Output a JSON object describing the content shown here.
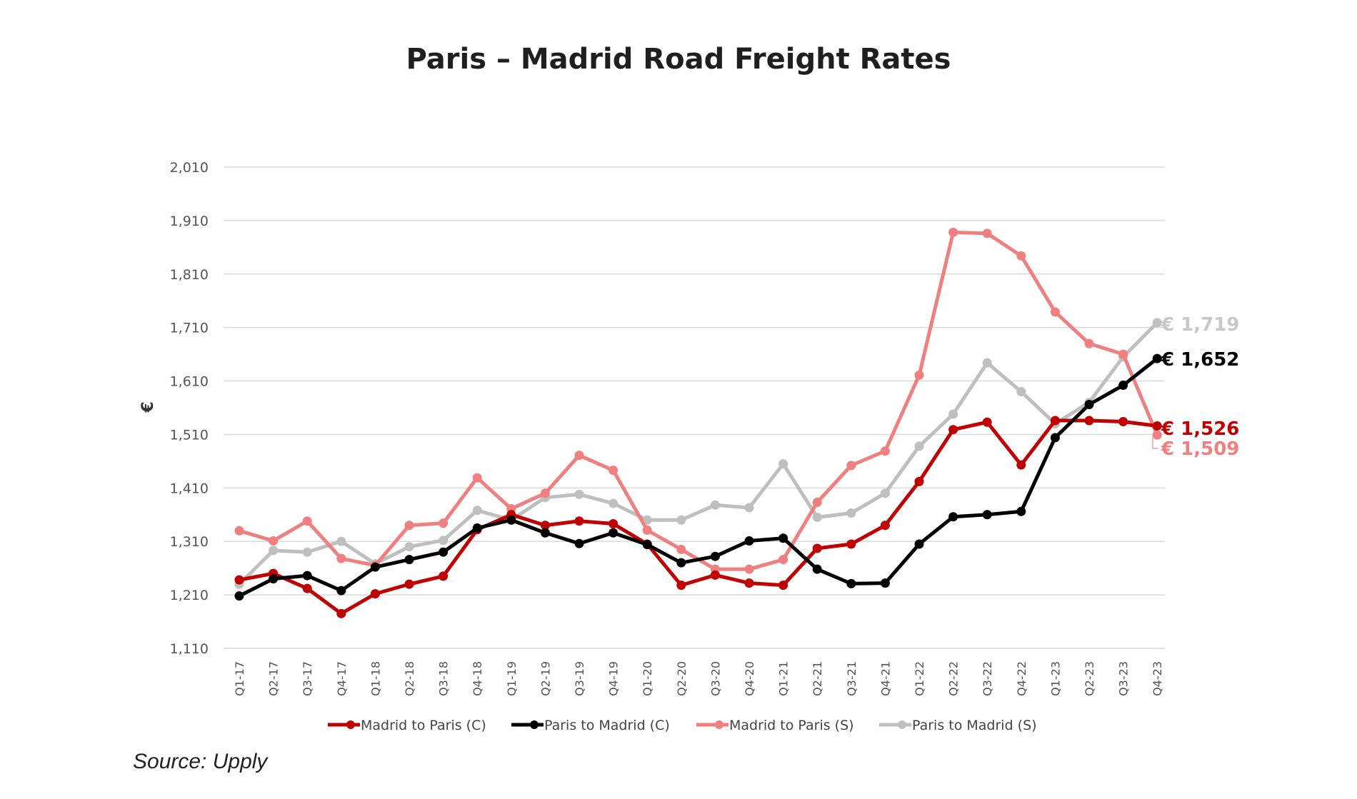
{
  "chart_data": {
    "type": "line",
    "title": "Paris – Madrid Road Freight Rates",
    "ylabel": "€",
    "xlabel": "",
    "ylim": [
      1110,
      2010
    ],
    "yticks": [
      1110,
      1210,
      1310,
      1410,
      1510,
      1610,
      1710,
      1810,
      1910,
      2010
    ],
    "ytick_labels": [
      "1,110",
      "1,210",
      "1,310",
      "1,410",
      "1,510",
      "1,610",
      "1,710",
      "1,810",
      "1,910",
      "2,010"
    ],
    "grid": true,
    "legend_position": "bottom",
    "categories": [
      "Q1-17",
      "Q2-17",
      "Q3-17",
      "Q4-17",
      "Q1-18",
      "Q2-18",
      "Q3-18",
      "Q4-18",
      "Q1-19",
      "Q2-19",
      "Q3-19",
      "Q4-19",
      "Q1-20",
      "Q2-20",
      "Q3-20",
      "Q4-20",
      "Q1-21",
      "Q2-21",
      "Q3-21",
      "Q4-21",
      "Q1-22",
      "Q2-22",
      "Q3-22",
      "Q4-22",
      "Q1-23",
      "Q2-23",
      "Q3-23",
      "Q4-23"
    ],
    "series": [
      {
        "name": "Madrid to Paris (C)",
        "color": "#c00000",
        "values": [
          1238,
          1250,
          1222,
          1175,
          1212,
          1230,
          1245,
          1332,
          1360,
          1340,
          1348,
          1343,
          1305,
          1228,
          1247,
          1232,
          1228,
          1297,
          1305,
          1340,
          1422,
          1519,
          1533,
          1453,
          1536,
          1536,
          1534,
          1526
        ],
        "end_label": "€ 1,526"
      },
      {
        "name": "Paris to Madrid (C)",
        "color": "#000000",
        "values": [
          1208,
          1240,
          1246,
          1218,
          1262,
          1276,
          1290,
          1335,
          1350,
          1326,
          1306,
          1326,
          1304,
          1270,
          1282,
          1311,
          1316,
          1258,
          1231,
          1232,
          1305,
          1356,
          1360,
          1366,
          1504,
          1566,
          1602,
          1652
        ],
        "end_label": "€ 1,652"
      },
      {
        "name": "Madrid to Paris (S)",
        "color": "#f08080",
        "values": [
          1330,
          1311,
          1348,
          1278,
          1265,
          1340,
          1344,
          1429,
          1371,
          1400,
          1471,
          1443,
          1331,
          1295,
          1258,
          1258,
          1276,
          1383,
          1452,
          1479,
          1621,
          1888,
          1886,
          1844,
          1739,
          1680,
          1660,
          1509
        ],
        "end_label": "€ 1,509"
      },
      {
        "name": "Paris to Madrid (S)",
        "color": "#bfbfbf",
        "values": [
          1230,
          1293,
          1290,
          1310,
          1268,
          1300,
          1312,
          1368,
          1350,
          1392,
          1398,
          1381,
          1350,
          1350,
          1378,
          1373,
          1455,
          1355,
          1363,
          1400,
          1488,
          1548,
          1644,
          1590,
          1530,
          1570,
          1655,
          1719
        ],
        "end_label": "€ 1,719"
      }
    ]
  },
  "source_note": "Source: Upply"
}
